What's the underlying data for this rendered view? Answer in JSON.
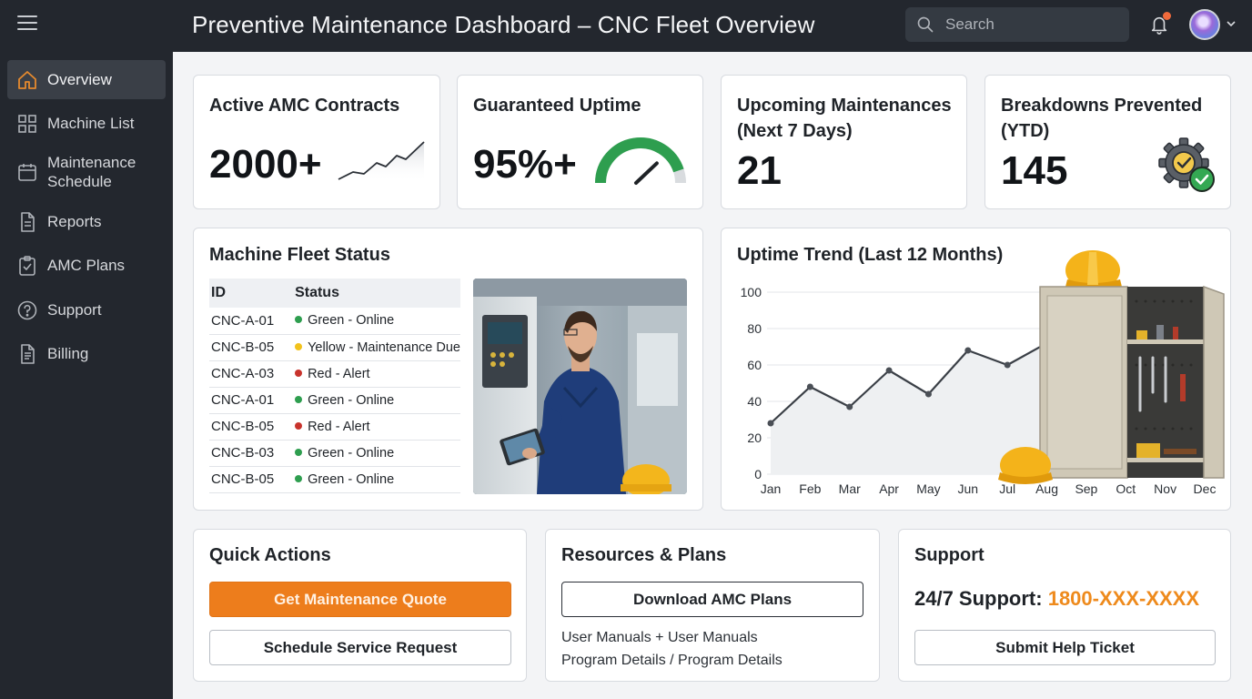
{
  "app": {
    "title": "Preventive Maintenance Dashboard – CNC Fleet Overview"
  },
  "search": {
    "placeholder": "Search"
  },
  "sidebar": {
    "items": [
      {
        "label": "Overview",
        "icon": "home-icon",
        "active": true
      },
      {
        "label": "Machine List",
        "icon": "grid-icon",
        "active": false
      },
      {
        "label": "Maintenance Schedule",
        "icon": "calendar-icon",
        "active": false
      },
      {
        "label": "Reports",
        "icon": "document-icon",
        "active": false
      },
      {
        "label": "AMC Plans",
        "icon": "clipboard-check-icon",
        "active": false
      },
      {
        "label": "Support",
        "icon": "help-circle-icon",
        "active": false
      },
      {
        "label": "Billing",
        "icon": "invoice-icon",
        "active": false
      }
    ]
  },
  "kpis": {
    "contracts": {
      "title": "Active AMC Contracts",
      "value": "2000+"
    },
    "uptime": {
      "title": "Guaranteed Uptime",
      "value": "95%+",
      "gauge_fraction": 0.9
    },
    "upcoming": {
      "title": "Upcoming Maintenances (Next 7 Days)",
      "value": "21"
    },
    "prevented": {
      "title": "Breakdowns Prevented (YTD)",
      "value": "145"
    }
  },
  "fleet": {
    "title": "Machine Fleet Status",
    "columns": [
      "ID",
      "Status"
    ],
    "rows": [
      {
        "id": "CNC-A-01",
        "status": "Green - Online",
        "color": "#2e9e4f"
      },
      {
        "id": "CNC-B-05",
        "status": "Yellow - Maintenance Due",
        "color": "#f2c21b"
      },
      {
        "id": "CNC-A-03",
        "status": "Red - Alert",
        "color": "#c8332c"
      },
      {
        "id": "CNC-A-01",
        "status": "Green - Online",
        "color": "#2e9e4f"
      },
      {
        "id": "CNC-B-05",
        "status": "Red - Alert",
        "color": "#c8332c"
      },
      {
        "id": "CNC-B-03",
        "status": "Green - Online",
        "color": "#2e9e4f"
      },
      {
        "id": "CNC-B-05",
        "status": "Green - Online",
        "color": "#2e9e4f"
      }
    ]
  },
  "chart_data": {
    "type": "line",
    "title": "Uptime Trend (Last 12 Months)",
    "categories": [
      "Jan",
      "Feb",
      "Mar",
      "Apr",
      "May",
      "Jun",
      "Jul",
      "Aug",
      "Sep",
      "Oct",
      "Nov",
      "Dec"
    ],
    "series": [
      {
        "values": [
          28,
          48,
          37,
          57,
          44,
          68,
          60,
          72,
          null,
          null,
          null,
          null
        ]
      }
    ],
    "ylim": [
      0,
      100
    ],
    "yticks": [
      0,
      20,
      40,
      60,
      80,
      100
    ],
    "grid": true,
    "legend": "none"
  },
  "quick_actions": {
    "title": "Quick Actions",
    "primary_label": "Get Maintenance Quote",
    "secondary_label": "Schedule Service Request"
  },
  "resources": {
    "title": "Resources & Plans",
    "download_label": "Download AMC Plans",
    "line1": "User Manuals + User Manuals",
    "line2": "Program Details / Program Details"
  },
  "support": {
    "title": "Support",
    "label": "24/7 Support:",
    "phone": "1800-XXX-XXXX",
    "ticket_label": "Submit Help Ticket"
  },
  "colors": {
    "accent": "#ed7d1c",
    "sidebar": "#23272e",
    "gauge": "#2e9e4f"
  }
}
